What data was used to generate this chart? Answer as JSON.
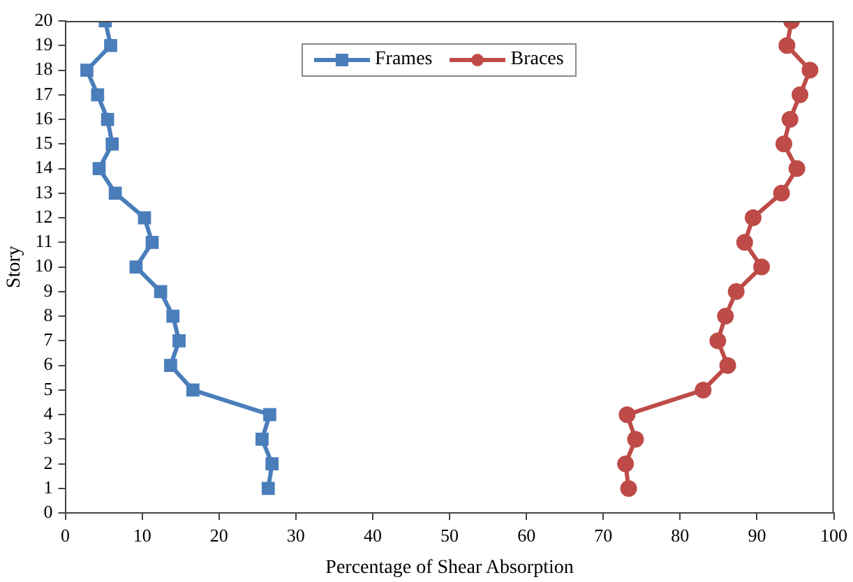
{
  "chart_data": {
    "type": "line",
    "xlabel": "Percentage of Shear Absorption",
    "ylabel": "Story",
    "series": [
      {
        "name": "Frames",
        "color": "#4a7ebb",
        "marker": "square",
        "x": [
          26.4,
          26.9,
          25.6,
          26.6,
          16.6,
          13.7,
          14.8,
          14.0,
          12.4,
          9.2,
          11.3,
          10.3,
          6.5,
          4.4,
          6.1,
          5.5,
          4.2,
          2.8,
          5.9,
          5.2
        ],
        "values": [
          1,
          2,
          3,
          4,
          5,
          6,
          7,
          8,
          9,
          10,
          11,
          12,
          13,
          14,
          15,
          16,
          17,
          18,
          19,
          20
        ]
      },
      {
        "name": "Braces",
        "color": "#be4b48",
        "marker": "circle",
        "x": [
          73.3,
          72.9,
          74.2,
          73.1,
          83.0,
          86.2,
          84.9,
          85.9,
          87.3,
          90.6,
          88.4,
          89.5,
          93.2,
          95.2,
          93.5,
          94.3,
          95.6,
          96.9,
          93.9,
          94.5
        ],
        "values": [
          1,
          2,
          3,
          4,
          5,
          6,
          7,
          8,
          9,
          10,
          11,
          12,
          13,
          14,
          15,
          16,
          17,
          18,
          19,
          20
        ]
      }
    ],
    "xlim": [
      0,
      100
    ],
    "xticks": [
      0,
      10,
      20,
      30,
      40,
      50,
      60,
      70,
      80,
      90,
      100
    ],
    "ylim": [
      0,
      20
    ],
    "yticks": [
      0,
      1,
      2,
      3,
      4,
      5,
      6,
      7,
      8,
      9,
      10,
      11,
      12,
      13,
      14,
      15,
      16,
      17,
      18,
      19,
      20
    ],
    "grid": false,
    "legend": "top",
    "line_style": "solid"
  }
}
